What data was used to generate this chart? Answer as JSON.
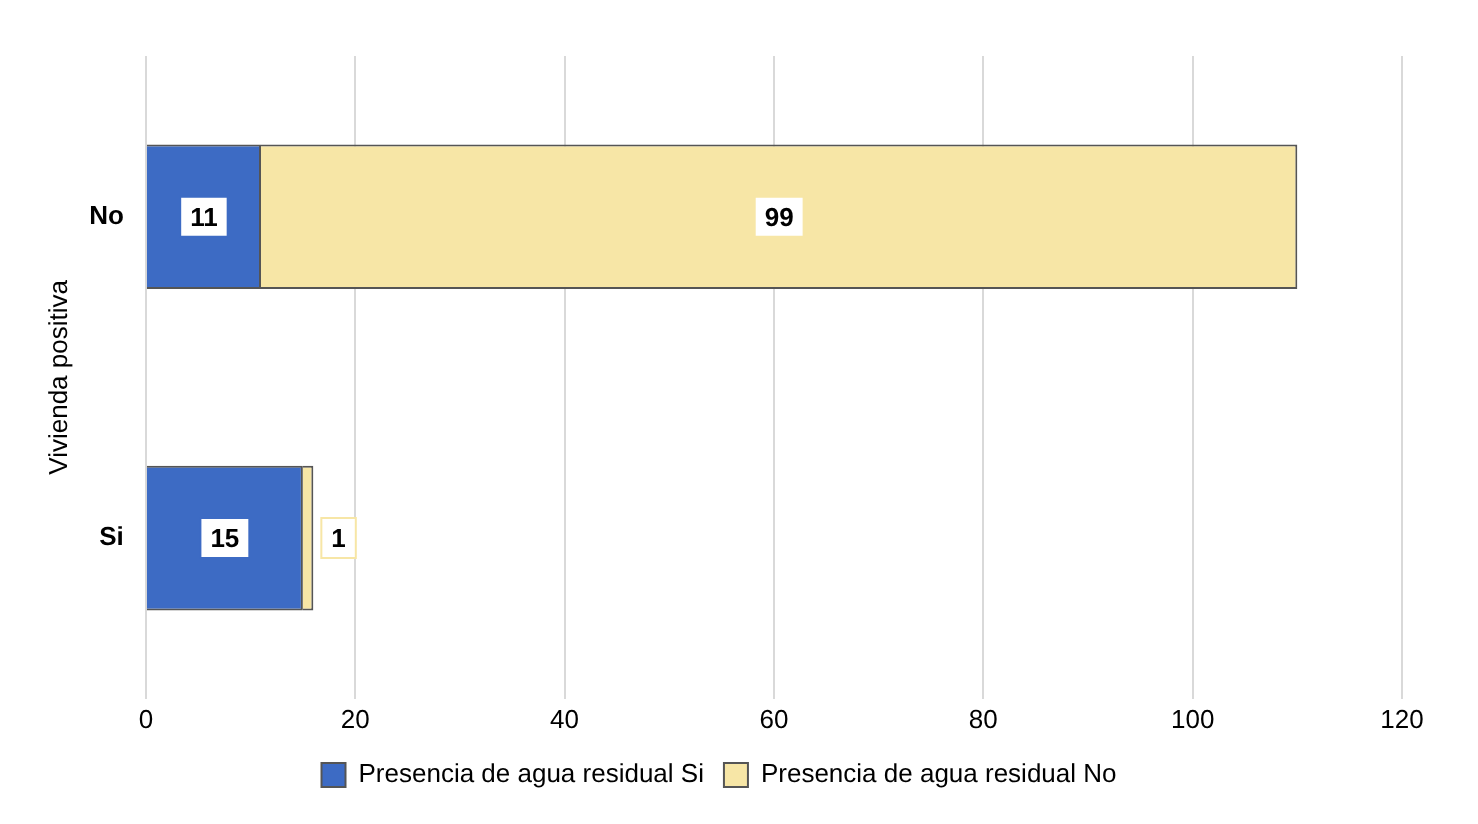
{
  "chart_data": {
    "type": "bar",
    "orientation": "horizontal",
    "stacked": true,
    "ylabel": "Vivienda positiva",
    "categories": [
      "No",
      "Si"
    ],
    "series": [
      {
        "name": "Presencia de agua residual Si",
        "color": "#3d6bc4",
        "values": [
          11,
          15
        ]
      },
      {
        "name": "Presencia de agua residual No",
        "color": "#f7e6a6",
        "values": [
          99,
          1
        ]
      }
    ],
    "xlim": [
      0,
      120
    ],
    "xticks": [
      0,
      20,
      40,
      60,
      80,
      100,
      120
    ],
    "grid": "x",
    "legend": "bottom",
    "data_labels": true
  }
}
